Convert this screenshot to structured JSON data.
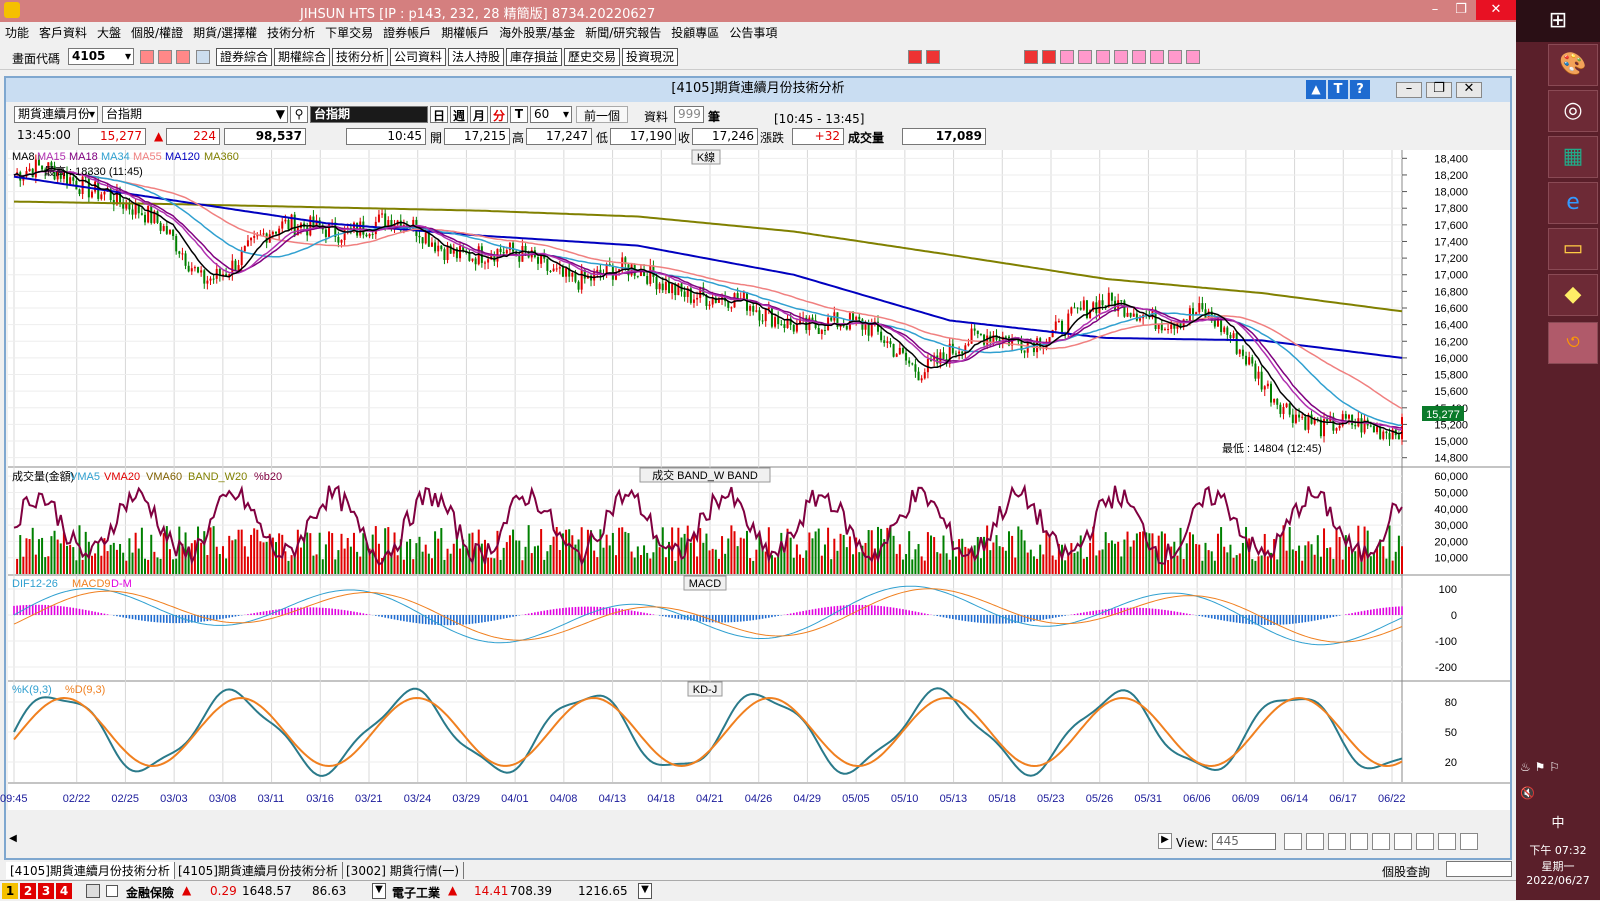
{
  "app": {
    "title": "JIHSUN HTS      [IP : p143, 232, 28 精簡版] 8734.20220627"
  },
  "menu": [
    "功能",
    "客戶資料",
    "大盤",
    "個股/權證",
    "期貨/選擇權",
    "技術分析",
    "下單交易",
    "證券帳戶",
    "期權帳戶",
    "海外股票/基金",
    "新聞/研究報告",
    "投顧專區",
    "公告事項"
  ],
  "toolbar": {
    "code_label": "畫面代碼",
    "code_value": "4105",
    "buttons": [
      "證券綜合",
      "期權綜合",
      "技術分析",
      "公司資料",
      "法人持股",
      "庫存損益",
      "歷史交易",
      "投資現況"
    ]
  },
  "window": {
    "title": "[4105]期貨連續月份技術分析"
  },
  "controls": {
    "product_select": "期貨連續月份",
    "index_input": "台指期",
    "index_label": "台指期",
    "periods": [
      "日",
      "週",
      "月",
      "分",
      "T"
    ],
    "interval_value": "60",
    "prev_button": "前一個",
    "data_label": "資料",
    "data_count": "999",
    "unit_label": "筆",
    "time_range": "[10:45 - 13:45]"
  },
  "quote": {
    "time": "13:45:00",
    "price": "15,277",
    "change": "224",
    "volume": "98,537",
    "bar_time": "10:45",
    "open_label": "開",
    "open": "17,215",
    "high_label": "高",
    "high": "17,247",
    "low_label": "低",
    "low": "17,190",
    "close_label": "收",
    "close": "17,246",
    "chg_label": "漲跌",
    "chg": "+32",
    "vol_label": "成交量",
    "vol": "17,089"
  },
  "panels": {
    "kline": {
      "title": "K線",
      "legend": [
        "MA8",
        "MA15",
        "MA18",
        "MA34",
        "MA55",
        "MA120",
        "MA360"
      ],
      "legend_colors": [
        "#000000",
        "#b030b0",
        "#800080",
        "#30a0d0",
        "#f08080",
        "#0000c0",
        "#808000"
      ],
      "high_note": "最高 : 18330 (11:45)",
      "low_note": "最低 : 14804 (12:45)",
      "price_tag": "15,277",
      "yticks": [
        "18,400",
        "18,200",
        "18,000",
        "17,800",
        "17,600",
        "17,400",
        "17,200",
        "17,000",
        "16,800",
        "16,600",
        "16,400",
        "16,200",
        "16,000",
        "15,800",
        "15,600",
        "15,400",
        "15,200",
        "15,000",
        "14,800"
      ]
    },
    "volume": {
      "title": "成交  BAND_W  BAND",
      "legend": [
        "成交量(金額)",
        "VMA5",
        "VMA20",
        "VMA60",
        "BAND_W20",
        "%b20"
      ],
      "legend_colors": [
        "#000000",
        "#30a0d0",
        "#e00000",
        "#806000",
        "#808000",
        "#800040"
      ],
      "yticks": [
        "60,000",
        "50,000",
        "40,000",
        "30,000",
        "20,000",
        "10,000"
      ]
    },
    "macd": {
      "title": "MACD",
      "legend": [
        "DIF12-26",
        "MACD9",
        "D-M"
      ],
      "legend_colors": [
        "#30a0d0",
        "#f08020",
        "#e000e0"
      ],
      "yticks": [
        "100",
        "0",
        "-100",
        "-200"
      ]
    },
    "kd": {
      "title": "KD-J",
      "legend": [
        "%K(9,3)",
        "%D(9,3)"
      ],
      "legend_colors": [
        "#30a0d0",
        "#f08020"
      ],
      "yticks": [
        "80",
        "50",
        "20"
      ]
    }
  },
  "xaxis": [
    "09:45",
    "02/22",
    "02/25",
    "03/03",
    "03/08",
    "03/11",
    "03/16",
    "03/21",
    "03/24",
    "03/29",
    "04/01",
    "04/08",
    "04/13",
    "04/18",
    "04/21",
    "04/26",
    "04/29",
    "05/05",
    "05/10",
    "05/13",
    "05/18",
    "05/23",
    "05/26",
    "05/31",
    "06/06",
    "06/09",
    "06/14",
    "06/17",
    "06/22"
  ],
  "view": {
    "label": "View:",
    "value": "445"
  },
  "tabs": [
    "[4105]期貨連續月份技術分析",
    "[4105]期貨連續月份技術分析",
    "[3002] 期貨行情(一)"
  ],
  "tabs_right": "個股查詢",
  "status": {
    "nums": [
      "1",
      "2",
      "3",
      "4"
    ],
    "item1_name": "金融保險",
    "item1_chg": "0.29",
    "item1_val": "1648.57",
    "item1_extra": "86.63",
    "item2_name": "電子工業",
    "item2_chg": "14.41",
    "item2_val": "708.39",
    "item2_extra": "1216.65"
  },
  "clock": {
    "time": "下午 07:32",
    "weekday": "星期一",
    "date": "2022/06/27",
    "ime": "中"
  },
  "chart_data": {
    "type": "line",
    "series": [
      {
        "name": "MA120",
        "x": [
          0,
          50,
          100,
          150,
          200,
          250,
          300,
          350,
          400,
          445
        ],
        "values": [
          18180,
          17900,
          17620,
          17470,
          17350,
          17000,
          16450,
          16240,
          16210,
          16000
        ]
      },
      {
        "name": "MA360",
        "x": [
          0,
          50,
          100,
          150,
          200,
          250,
          300,
          350,
          400,
          445
        ],
        "values": [
          17880,
          17850,
          17810,
          17770,
          17700,
          17520,
          17240,
          16950,
          16780,
          16560
        ]
      },
      {
        "name": "MA8",
        "x": [
          0,
          30,
          60,
          80,
          100,
          130,
          160,
          190,
          220,
          240,
          260,
          290,
          300,
          320,
          340,
          360,
          380,
          400,
          420,
          445
        ],
        "values": [
          18200,
          18100,
          17000,
          17400,
          17650,
          17500,
          17150,
          17000,
          16850,
          16450,
          16500,
          15950,
          16100,
          16200,
          16500,
          16600,
          16500,
          15800,
          15050,
          15277
        ]
      }
    ],
    "kline_range": [
      14700,
      18500
    ],
    "volume_range": [
      0,
      65000
    ],
    "macd_range": [
      -250,
      150
    ],
    "kd_range": [
      0,
      100
    ]
  }
}
